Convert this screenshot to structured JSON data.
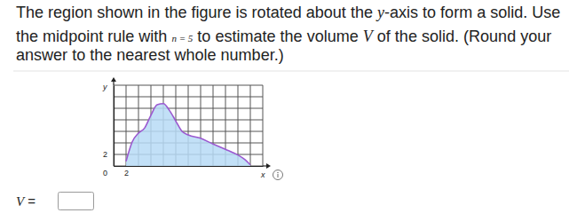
{
  "question": {
    "lines": [
      [
        {
          "text": "The region shown in the figure is rotated about the "
        },
        {
          "text": "y",
          "math": true
        },
        {
          "text": "-axis to form a solid. Use"
        }
      ],
      [
        {
          "text": "the midpoint rule with "
        },
        {
          "text": "n = 5",
          "math": true
        },
        {
          "text": " to estimate the volume "
        },
        {
          "text": "V",
          "math": true
        },
        {
          "text": " of the solid. (Round your"
        }
      ],
      [
        {
          "text": "answer to the nearest whole number.)"
        }
      ]
    ]
  },
  "answer": {
    "label": [
      {
        "text": "V",
        "math": true
      },
      {
        "text": " ="
      }
    ]
  },
  "chart_data": {
    "type": "area",
    "xlabel": "x",
    "ylabel": "y",
    "x": [
      2,
      3,
      4,
      5,
      6,
      7,
      8,
      9,
      10,
      11,
      12,
      14,
      16,
      18,
      20,
      21,
      22
    ],
    "series": [
      {
        "color": "#9b59d0",
        "values": [
          0.8,
          4.2,
          5.7,
          6.6,
          8.8,
          10.6,
          10.8,
          9.6,
          7.8,
          6.0,
          5.4,
          4.8,
          3.8,
          2.9,
          1.9,
          1.2,
          0.2
        ]
      }
    ],
    "color": "#b7dbf6",
    "xlim": [
      0,
      24
    ],
    "ylim": [
      0,
      14
    ],
    "xticks": [
      0,
      2
    ],
    "yticks": [
      2
    ],
    "grid": true
  }
}
